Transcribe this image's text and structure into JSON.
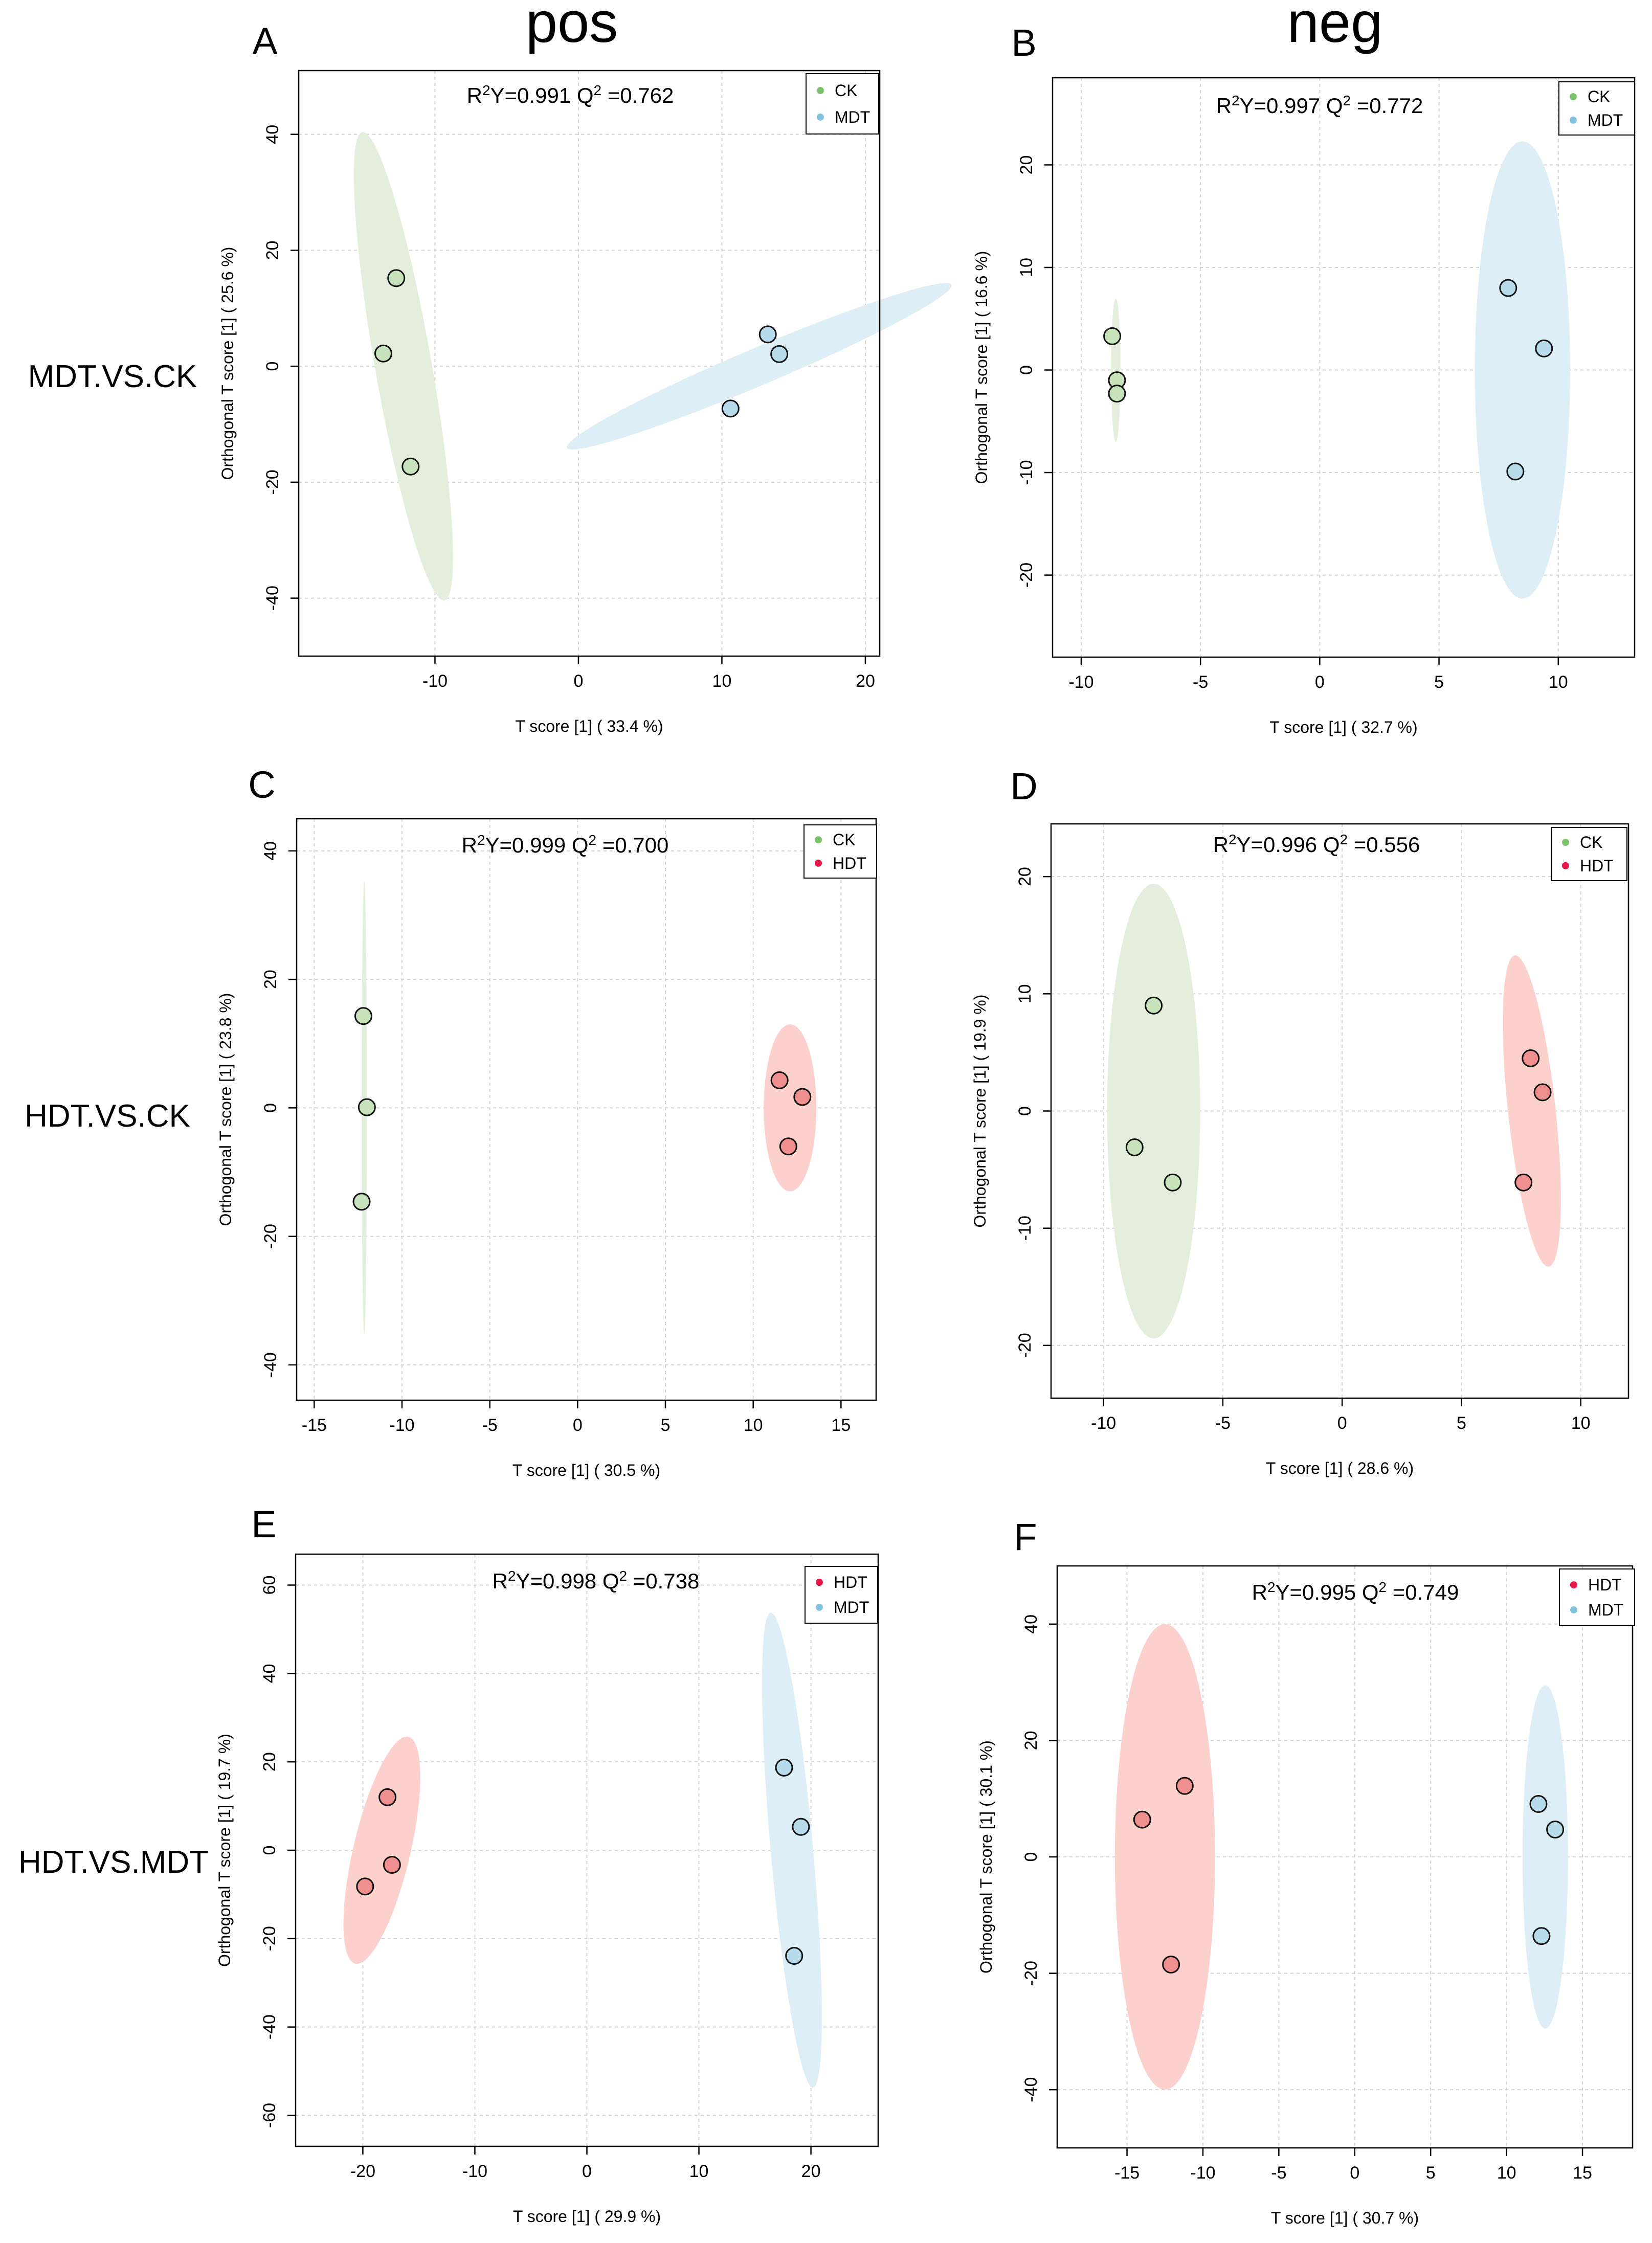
{
  "figure": {
    "column_titles": [
      "pos",
      "neg"
    ],
    "row_labels": [
      "MDT.VS.CK",
      "HDT.VS.CK",
      "HDT.VS.MDT"
    ]
  },
  "colors": {
    "CK": "#7ac36a",
    "MDT": "#84c3df",
    "HDT": "#e8174a",
    "CK_fill": "#e3efdc",
    "MDT_fill": "#deeef7",
    "HDT_fill": "#fbd0cd",
    "CK_point": "#c7e3bb",
    "MDT_point": "#b7dbea",
    "HDT_point": "#f08f8f"
  },
  "chart_data": [
    {
      "panel": "A",
      "type": "scatter",
      "mode": "pos",
      "comparison": "MDT.VS.CK",
      "xlabel": "T score [1] ( 33.4 %)",
      "ylabel": "Orthogonal T score [1] ( 25.6 %)",
      "xlim": [
        -19.5,
        21
      ],
      "ylim": [
        -50,
        51
      ],
      "xticks": [
        -10,
        0,
        10,
        20
      ],
      "yticks": [
        -40,
        -20,
        0,
        20,
        40
      ],
      "xtick_labels": [
        "-10",
        "0",
        "10",
        "20"
      ],
      "ytick_labels": [
        "-40",
        "-20",
        "0",
        "20",
        "40"
      ],
      "annotation": {
        "r2y": "0.991",
        "q2": "0.762"
      },
      "legend": [
        "CK",
        "MDT"
      ],
      "series": [
        {
          "name": "CK",
          "points": [
            [
              -12.7,
              15.2
            ],
            [
              -13.6,
              2.2
            ],
            [
              -11.7,
              -17.3
            ]
          ],
          "ellipse": {
            "cx": -12.2,
            "cy": 0,
            "rx": 2.0,
            "ry": 40.5,
            "angle": 4
          }
        },
        {
          "name": "MDT",
          "points": [
            [
              13.2,
              5.5
            ],
            [
              14.0,
              2.1
            ],
            [
              10.6,
              -7.3
            ]
          ],
          "ellipse": {
            "cx": 12.6,
            "cy": 0,
            "rx": 2.4,
            "ry": 19.5,
            "angle": -43
          }
        }
      ]
    },
    {
      "panel": "B",
      "type": "scatter",
      "mode": "neg",
      "comparison": "MDT.VS.CK",
      "xlabel": "T score [1] ( 32.7 %)",
      "ylabel": "Orthogonal T score [1] ( 16.6 %)",
      "xlim": [
        -11.2,
        13.2
      ],
      "ylim": [
        -28,
        28.5
      ],
      "xticks": [
        -10,
        -5,
        0,
        5,
        10
      ],
      "yticks": [
        -20,
        -10,
        0,
        10,
        20
      ],
      "xtick_labels": [
        "-10",
        "-5",
        "0",
        "5",
        "10"
      ],
      "ytick_labels": [
        "-20",
        "-10",
        "0",
        "10",
        "20"
      ],
      "annotation": {
        "r2y": "0.997",
        "q2": "0.772"
      },
      "legend": [
        "CK",
        "MDT"
      ],
      "series": [
        {
          "name": "CK",
          "points": [
            [
              -8.7,
              3.3
            ],
            [
              -8.5,
              -1.0
            ],
            [
              -8.5,
              -2.3
            ]
          ],
          "ellipse": {
            "cx": -8.55,
            "cy": 0,
            "rx": 0.2,
            "ry": 7.0,
            "angle": 0
          }
        },
        {
          "name": "MDT",
          "points": [
            [
              7.9,
              8.0
            ],
            [
              9.4,
              2.1
            ],
            [
              8.2,
              -9.9
            ]
          ],
          "ellipse": {
            "cx": 8.5,
            "cy": 0,
            "rx": 2.0,
            "ry": 22.3,
            "angle": 0
          }
        }
      ]
    },
    {
      "panel": "C",
      "type": "scatter",
      "mode": "pos",
      "comparison": "HDT.VS.CK",
      "xlabel": "T score [1] ( 30.5 %)",
      "ylabel": "Orthogonal T score [1] ( 23.8 %)",
      "xlim": [
        -16,
        17
      ],
      "ylim": [
        -45.5,
        45
      ],
      "xticks": [
        -15,
        -10,
        -5,
        0,
        5,
        10,
        15
      ],
      "yticks": [
        -40,
        -20,
        0,
        20,
        40
      ],
      "xtick_labels": [
        "-15",
        "-10",
        "-5",
        "0",
        "5",
        "10",
        "15"
      ],
      "ytick_labels": [
        "-40",
        "-20",
        "0",
        "20",
        "40"
      ],
      "annotation": {
        "r2y": "0.999",
        "q2": "0.700"
      },
      "legend": [
        "CK",
        "HDT"
      ],
      "series": [
        {
          "name": "CK",
          "points": [
            [
              -12.2,
              14.3
            ],
            [
              -12.0,
              0.1
            ],
            [
              -12.3,
              -14.6
            ]
          ],
          "ellipse": {
            "cx": -12.15,
            "cy": 0,
            "rx": 0.15,
            "ry": 35.3,
            "angle": 0
          }
        },
        {
          "name": "HDT",
          "points": [
            [
              11.5,
              4.3
            ],
            [
              12.8,
              1.7
            ],
            [
              12.0,
              -6.0
            ]
          ],
          "ellipse": {
            "cx": 12.1,
            "cy": 0,
            "rx": 1.5,
            "ry": 13.0,
            "angle": 0
          }
        }
      ]
    },
    {
      "panel": "D",
      "type": "scatter",
      "mode": "neg",
      "comparison": "HDT.VS.CK",
      "xlabel": "T score [1] ( 28.6 %)",
      "ylabel": "Orthogonal T score [1] ( 19.9 %)",
      "xlim": [
        -12.2,
        12
      ],
      "ylim": [
        -24.5,
        24.5
      ],
      "xticks": [
        -10,
        -5,
        0,
        5,
        10
      ],
      "yticks": [
        -20,
        -10,
        0,
        10,
        20
      ],
      "xtick_labels": [
        "-10",
        "-5",
        "0",
        "5",
        "10"
      ],
      "ytick_labels": [
        "-20",
        "-10",
        "0",
        "10",
        "20"
      ],
      "annotation": {
        "r2y": "0.996",
        "q2": "0.556"
      },
      "legend": [
        "CK",
        "HDT"
      ],
      "series": [
        {
          "name": "CK",
          "points": [
            [
              -7.9,
              9.0
            ],
            [
              -8.7,
              -3.1
            ],
            [
              -7.1,
              -6.1
            ]
          ],
          "ellipse": {
            "cx": -7.9,
            "cy": 0,
            "rx": 1.95,
            "ry": 19.4,
            "angle": 0
          }
        },
        {
          "name": "HDT",
          "points": [
            [
              7.9,
              4.5
            ],
            [
              8.4,
              1.6
            ],
            [
              7.6,
              -6.1
            ]
          ],
          "ellipse": {
            "cx": 7.95,
            "cy": 0,
            "rx": 1.0,
            "ry": 13.3,
            "angle": 3
          }
        }
      ]
    },
    {
      "panel": "E",
      "type": "scatter",
      "mode": "pos",
      "comparison": "HDT.VS.MDT",
      "xlabel": "T score [1] ( 29.9 %)",
      "ylabel": "Orthogonal T score [1] ( 19.7 %)",
      "xlim": [
        -26,
        26
      ],
      "ylim": [
        -67,
        67
      ],
      "xticks": [
        -20,
        -10,
        0,
        10,
        20
      ],
      "yticks": [
        -60,
        -40,
        -20,
        0,
        20,
        40,
        60
      ],
      "xtick_labels": [
        "-20",
        "-10",
        "0",
        "10",
        "20"
      ],
      "ytick_labels": [
        "-60",
        "-40",
        "-20",
        "0",
        "20",
        "40",
        "60"
      ],
      "annotation": {
        "r2y": "0.998",
        "q2": "0.738"
      },
      "legend": [
        "HDT",
        "MDT"
      ],
      "series": [
        {
          "name": "HDT",
          "points": [
            [
              -17.8,
              12.0
            ],
            [
              -17.4,
              -3.3
            ],
            [
              -19.8,
              -8.2
            ]
          ],
          "ellipse": {
            "cx": -18.3,
            "cy": 0,
            "rx": 2.6,
            "ry": 25.8,
            "angle": -5
          }
        },
        {
          "name": "MDT",
          "points": [
            [
              17.6,
              18.7
            ],
            [
              19.1,
              5.3
            ],
            [
              18.5,
              -23.9
            ]
          ],
          "ellipse": {
            "cx": 18.3,
            "cy": 0,
            "rx": 1.9,
            "ry": 53.8,
            "angle": 2
          }
        }
      ]
    },
    {
      "panel": "F",
      "type": "scatter",
      "mode": "neg",
      "comparison": "HDT.VS.MDT",
      "xlabel": "T score [1] ( 30.7 %)",
      "ylabel": "Orthogonal T score [1] ( 30.1 %)",
      "xlim": [
        -19.6,
        18.3
      ],
      "ylim": [
        -50,
        50
      ],
      "xticks": [
        -15,
        -10,
        -5,
        0,
        5,
        10,
        15
      ],
      "yticks": [
        -40,
        -20,
        0,
        20,
        40
      ],
      "xtick_labels": [
        "-15",
        "-10",
        "-5",
        "0",
        "5",
        "10",
        "15"
      ],
      "ytick_labels": [
        "-40",
        "-20",
        "0",
        "20",
        "40"
      ],
      "annotation": {
        "r2y": "0.995",
        "q2": "0.749"
      },
      "legend": [
        "HDT",
        "MDT"
      ],
      "series": [
        {
          "name": "HDT",
          "points": [
            [
              -14.0,
              6.4
            ],
            [
              -11.2,
              12.2
            ],
            [
              -12.1,
              -18.5
            ]
          ],
          "ellipse": {
            "cx": -12.5,
            "cy": 0,
            "rx": 3.3,
            "ry": 40.0,
            "angle": 0
          }
        },
        {
          "name": "MDT",
          "points": [
            [
              12.1,
              9.1
            ],
            [
              13.2,
              4.7
            ],
            [
              12.3,
              -13.6
            ]
          ],
          "ellipse": {
            "cx": 12.55,
            "cy": 0,
            "rx": 1.5,
            "ry": 29.5,
            "angle": 0
          }
        }
      ]
    }
  ]
}
